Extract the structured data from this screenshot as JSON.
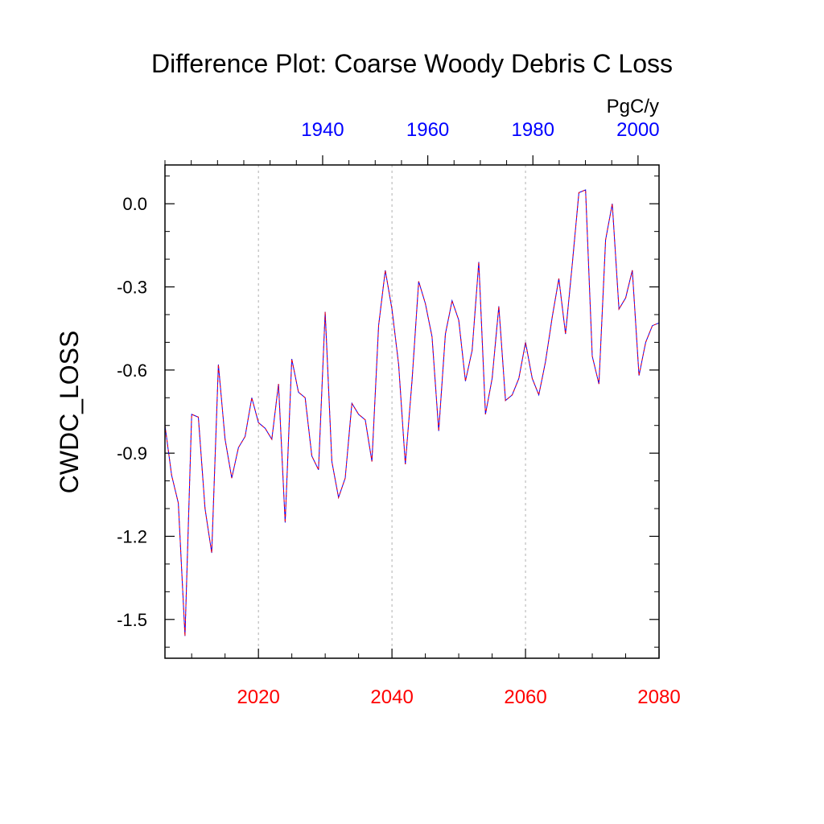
{
  "chart_data": {
    "type": "line",
    "title": "Difference Plot: Coarse Woody Debris C Loss",
    "ylabel": "CWDC_LOSS",
    "units": "PgC/y",
    "xlabel": "",
    "x_bottom": {
      "range": [
        2006,
        2080
      ],
      "ticks": [
        2020,
        2040,
        2060,
        2080
      ],
      "tick_labels": [
        "2020",
        "2040",
        "2060",
        "2080"
      ],
      "color": "#ff0000"
    },
    "x_top": {
      "range": [
        1910,
        2004
      ],
      "ticks": [
        1940,
        1960,
        1980,
        2000
      ],
      "tick_labels": [
        "1940",
        "1960",
        "1980",
        "2000"
      ],
      "color": "#0000ff"
    },
    "ylim": [
      -1.64,
      0.14
    ],
    "y_ticks": [
      0.0,
      -0.3,
      -0.6,
      -0.9,
      -1.2,
      -1.5
    ],
    "y_tick_labels": [
      "0.0",
      "-0.3",
      "-0.6",
      "-0.9",
      "-1.2",
      "-1.5"
    ],
    "grid": "vertical dashed at major bottom ticks",
    "series": [
      {
        "name": "difference",
        "colors": [
          "#ff0000",
          "#0000ff"
        ],
        "style": "dashed two-color",
        "x": [
          2006,
          2007,
          2008,
          2009,
          2010,
          2011,
          2012,
          2013,
          2014,
          2015,
          2016,
          2017,
          2018,
          2019,
          2020,
          2021,
          2022,
          2023,
          2024,
          2025,
          2026,
          2027,
          2028,
          2029,
          2030,
          2031,
          2032,
          2033,
          2034,
          2035,
          2036,
          2037,
          2038,
          2039,
          2040,
          2041,
          2042,
          2043,
          2044,
          2045,
          2046,
          2047,
          2048,
          2049,
          2050,
          2051,
          2052,
          2053,
          2054,
          2055,
          2056,
          2057,
          2058,
          2059,
          2060,
          2061,
          2062,
          2063,
          2064,
          2065,
          2066,
          2067,
          2068,
          2069,
          2070,
          2071,
          2072,
          2073,
          2074,
          2075,
          2076,
          2077,
          2078,
          2079,
          2080
        ],
        "values": [
          -0.8,
          -0.98,
          -1.08,
          -1.56,
          -0.76,
          -0.77,
          -1.1,
          -1.26,
          -0.58,
          -0.85,
          -0.99,
          -0.88,
          -0.84,
          -0.7,
          -0.79,
          -0.81,
          -0.85,
          -0.65,
          -1.15,
          -0.56,
          -0.68,
          -0.7,
          -0.91,
          -0.96,
          -0.39,
          -0.93,
          -1.06,
          -0.99,
          -0.72,
          -0.76,
          -0.78,
          -0.93,
          -0.44,
          -0.24,
          -0.38,
          -0.58,
          -0.94,
          -0.64,
          -0.28,
          -0.36,
          -0.48,
          -0.82,
          -0.47,
          -0.35,
          -0.42,
          -0.64,
          -0.53,
          -0.21,
          -0.76,
          -0.63,
          -0.37,
          -0.71,
          -0.69,
          -0.63,
          -0.5,
          -0.63,
          -0.69,
          -0.57,
          -0.41,
          -0.27,
          -0.47,
          -0.22,
          0.04,
          0.05,
          -0.55,
          -0.65,
          -0.13,
          0.0,
          -0.38,
          -0.34,
          -0.24,
          -0.62,
          -0.5,
          -0.44,
          -0.43
        ]
      }
    ]
  }
}
